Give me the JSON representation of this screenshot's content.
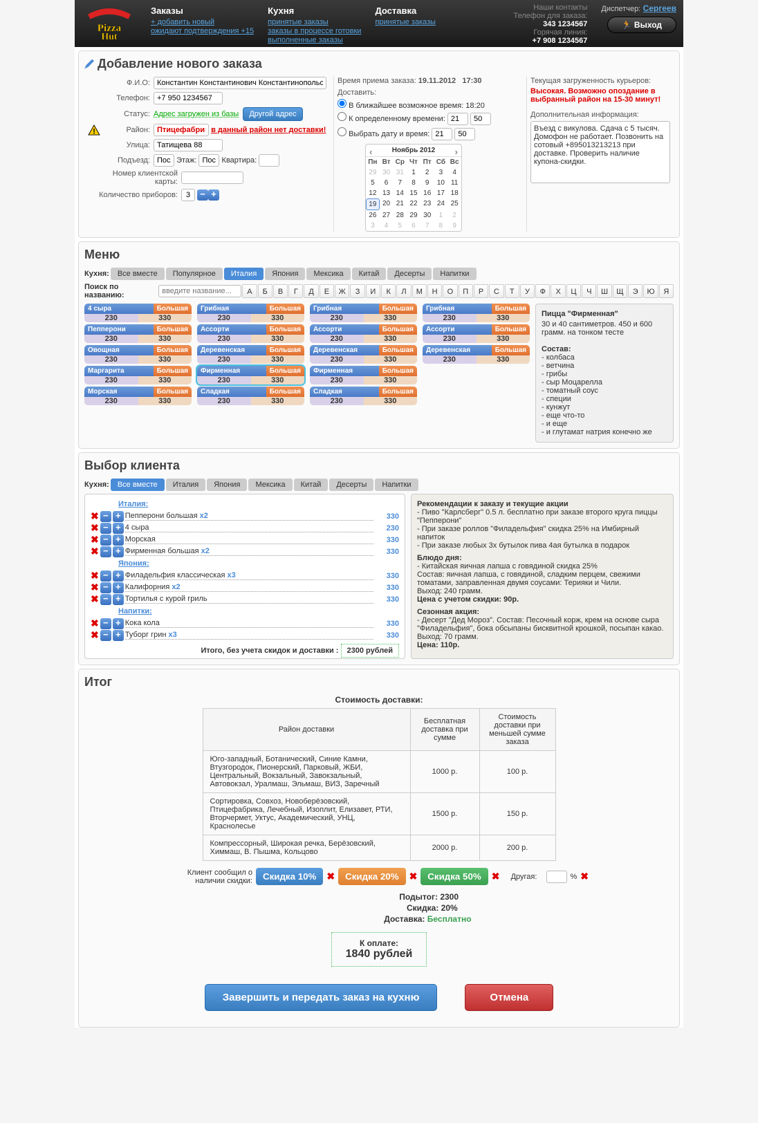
{
  "header": {
    "nav": [
      {
        "title": "Заказы",
        "links": [
          "+ добавить новый",
          "ожидают подтверждения +15"
        ]
      },
      {
        "title": "Кухня",
        "links": [
          "принятые заказы",
          "заказы в процессе готовки",
          "выполненные заказы"
        ]
      },
      {
        "title": "Доставка",
        "links": [
          "принятые заказы"
        ]
      }
    ],
    "contacts_title": "Наши контакты",
    "phone1_label": "Телефон для заказа:",
    "phone1": "343 1234567",
    "phone2_label": "Горячая линия:",
    "phone2": "+7 908 1234567",
    "dispatcher_label": "Диспетчер:",
    "dispatcher_name": "Сергеев",
    "exit": "Выход"
  },
  "order": {
    "title": "Добавление нового заказа",
    "fio_label": "Ф.И.О:",
    "fio": "Константин Константинович Константинопольский",
    "phone_label": "Телефон:",
    "phone": "+7 950 1234567",
    "status_label": "Статус:",
    "status": "Адрес загружен из базы",
    "other_addr": "Другой адрес",
    "district_label": "Район:",
    "district": "Птицефабрика",
    "district_warn": "в данный район нет доставки!",
    "street_label": "Улица:",
    "street": "Татищева 88",
    "entrance_label": "Подъезд:",
    "entrance": "Посл",
    "floor_label": "Этаж:",
    "floor": "Посл",
    "apt_label": "Квартира:",
    "card_label": "Номер клиентской карты:",
    "cutlery_label": "Количество приборов:",
    "cutlery": "3",
    "time_label": "Время приема заказа:",
    "time_date": "19.11.2012",
    "time_time": "17:30",
    "deliver_label": "Доставить:",
    "opt1": "В ближайшее возможное время: 18:20",
    "opt2": "К определенному времени:",
    "opt2_h": "21",
    "opt2_m": "50",
    "opt3": "Выбрать дату и время:",
    "opt3_h": "21",
    "opt3_m": "50",
    "cal_title": "Ноябрь 2012",
    "cal_dow": [
      "Пн",
      "Вт",
      "Ср",
      "Чт",
      "Пт",
      "Сб",
      "Вс"
    ],
    "cal_prev": [
      "29",
      "30",
      "31"
    ],
    "cal_days": [
      "1",
      "2",
      "3",
      "4",
      "5",
      "6",
      "7",
      "8",
      "9",
      "10",
      "11",
      "12",
      "13",
      "14",
      "15",
      "16",
      "17",
      "18",
      "19",
      "20",
      "21",
      "22",
      "23",
      "24",
      "25",
      "26",
      "27",
      "28",
      "29",
      "30"
    ],
    "cal_next": [
      "1",
      "2",
      "3",
      "4",
      "5",
      "6",
      "7",
      "8",
      "9"
    ],
    "cal_today": "19",
    "load_label": "Текущая загруженность курьеров:",
    "load_text": "Высокая. Возможно опоздание в выбранный район на 15-30 минут!",
    "info_label": "Дополнительная информация:",
    "info_text": "Въезд с викулова. Сдача с 5 тысяч. Домофон не работает. Позвонить на сотовый +895013213213 при доставке. Проверить наличие купона-скидки."
  },
  "menu": {
    "title": "Меню",
    "cuisine_label": "Кухня:",
    "tabs": [
      "Все вместе",
      "Популярное",
      "Италия",
      "Япония",
      "Мексика",
      "Китай",
      "Десерты",
      "Напитки"
    ],
    "active_tab": 2,
    "search_label": "Поиск по названию:",
    "search_placeholder": "введите название...",
    "alphabet": [
      "А",
      "Б",
      "В",
      "Г",
      "Д",
      "Е",
      "Ж",
      "З",
      "И",
      "К",
      "Л",
      "М",
      "Н",
      "О",
      "П",
      "Р",
      "С",
      "Т",
      "У",
      "Ф",
      "Х",
      "Ц",
      "Ч",
      "Ш",
      "Щ",
      "Э",
      "Ю",
      "Я"
    ],
    "size_label": "Большая",
    "p1": "230",
    "p2": "330",
    "cols": [
      [
        "4 сыра",
        "Пепперони",
        "Овощная",
        "Маргарита",
        "Морская"
      ],
      [
        "Грибная",
        "Ассорти",
        "Деревенская",
        "Фирменная",
        "Сладкая"
      ],
      [
        "Грибная",
        "Ассорти",
        "Деревенская",
        "Фирменная",
        "Сладкая"
      ],
      [
        "Грибная",
        "Ассорти",
        "Деревенская"
      ]
    ],
    "selected": "Фирменная",
    "info_title": "Пицца \"Фирменная\"",
    "info_desc": "30 и 40 сантиметров. 450 и 600 грамм. на тонком тесте",
    "info_compose": "Состав:",
    "info_items": [
      "- колбаса",
      "- ветчина",
      "- грибы",
      "- сыр Моцарелла",
      "- томатный соус",
      "- специи",
      "- кунжут",
      "- еще что-то",
      "- и еще",
      "- и глутамат натрия конечно же"
    ]
  },
  "client": {
    "title": "Выбор клиента",
    "cuisine_label": "Кухня:",
    "tabs": [
      "Все вместе",
      "Италия",
      "Япония",
      "Мексика",
      "Китай",
      "Десерты",
      "Напитки"
    ],
    "active_tab": 0,
    "cats": [
      {
        "name": "Италия:",
        "items": [
          {
            "name": "Пепперони большая",
            "mult": "x2",
            "price": "330"
          },
          {
            "name": "4 сыра",
            "price": "230"
          },
          {
            "name": "Морская",
            "price": "330"
          },
          {
            "name": "Фирменная большая",
            "mult": "x2",
            "price": "330"
          }
        ]
      },
      {
        "name": "Япония:",
        "items": [
          {
            "name": "Филадельфия классическая",
            "mult": "x3",
            "price": "330"
          },
          {
            "name": "Калифорния",
            "mult": "x2",
            "price": "330"
          },
          {
            "name": "Тортилья с курой гриль",
            "price": "330"
          }
        ]
      },
      {
        "name": "Напитки:",
        "items": [
          {
            "name": "Кока кола",
            "price": "330"
          },
          {
            "name": "Туборг грин",
            "mult": "x3",
            "price": "330"
          }
        ]
      }
    ],
    "subtotal_label": "Итого, без учета скидок и доставки :",
    "subtotal": "2300 рублей",
    "promo_title": "Рекомендации к заказу и текущие акции",
    "promo_lines": [
      "- Пиво \"Карлсберг\" 0.5 л. бесплатно при заказе второго круга пиццы \"Пепперони\"",
      "- При заказе роллов \"Филадельфия\" скидка 25% на Имбирный напиток",
      "- При заказе любых 3х бутылок пива 4ая бутылка в подарок"
    ],
    "dish_title": "Блюдо дня:",
    "dish_lines": [
      "- Китайская яичная лапша с говядиной скидка 25%",
      "Состав: яичная лапша, с говядиной, сладким перцем, свежими томатами, заправленная двумя соусами: Терияки и Чили.",
      "Выход: 240 грамм."
    ],
    "dish_price": "Цена с учетом скидки: 90р.",
    "season_title": "Сезонная акция:",
    "season_lines": [
      "- Десерт \"Дед Мороз\". Состав: Песочный корж, крем на основе сыра \"Филадельфия\", бока обсыпаны бисквитной крошкой, посыпан какао.",
      "Выход: 70 грамм."
    ],
    "season_price": "Цена: 110р."
  },
  "total": {
    "title": "Итог",
    "delivery_title": "Стоимость доставки:",
    "th1": "Район доставки",
    "th2": "Бесплатная доставка при сумме",
    "th3": "Стоимость доставки при меньшей сумме заказа",
    "rows": [
      [
        "Юго-западный, Ботанический, Синие Камни, Втузгородок, Пионерский, Парковый, ЖБИ, Центральный, Вокзальный, Завокзальный, Автовокзал, Уралмаш, Эльмаш, ВИЗ, Заречный",
        "1000 р.",
        "100 р."
      ],
      [
        "Сортировка, Совхоз, Новоберёзовский, Птицефабрика, Лечебный, Изоплит, Елизавет, РТИ, Вторчермет, Уктус, Академический, УНЦ, Краснолесье",
        "1500 р.",
        "150 р."
      ],
      [
        "Компрессорный, Широкая речка, Берёзовский, Химмаш, В. Пышма, Кольцово",
        "2000 р.",
        "200 р."
      ]
    ],
    "disc_label": "Клиент сообщил о наличии скидки:",
    "disc10": "Скидка 10%",
    "disc20": "Скидка 20%",
    "disc50": "Скидка 50%",
    "disc_other": "Другая:",
    "disc_pct": "%",
    "sub_label": "Подытог:",
    "sub_val": "2300",
    "discl_label": "Скидка:",
    "discl_val": "20%",
    "deliv_label": "Доставка:",
    "deliv_val": "Бесплатно",
    "pay_label": "К оплате:",
    "pay_val": "1840 рублей",
    "submit": "Завершить и передать заказ на кухню",
    "cancel": "Отмена"
  }
}
